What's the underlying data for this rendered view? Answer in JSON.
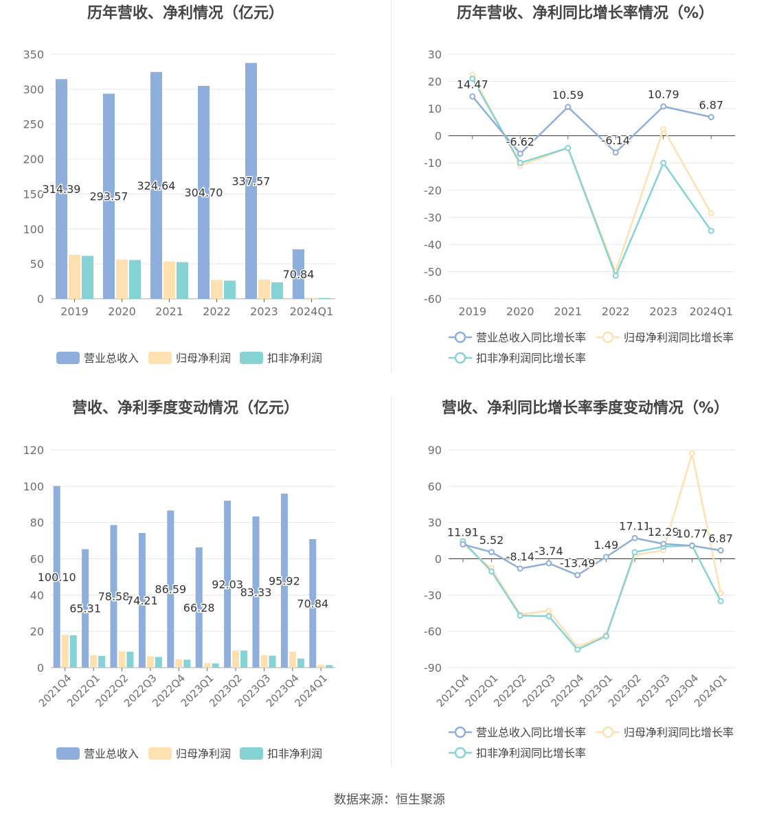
{
  "source_label": "数据来源：恒生聚源",
  "colors": {
    "revenue": "#8eaedb",
    "netprofit": "#ffe0b0",
    "deducted": "#86d3d6",
    "grid": "#e6e6ee",
    "axis_text": "#6e6e6e",
    "title": "#444444"
  },
  "legend_bar": [
    "营业总收入",
    "归母净利润",
    "扣非净利润"
  ],
  "legend_line": [
    "营业总收入同比增长率",
    "归母净利润同比增长率",
    "扣非净利润同比增长率"
  ],
  "chart_data": [
    {
      "type": "bar",
      "title": "历年营收、净利情况（亿元）",
      "categories": [
        "2019",
        "2020",
        "2021",
        "2022",
        "2023",
        "2024Q1"
      ],
      "ylim": [
        0,
        350
      ],
      "yticks": [
        0,
        50,
        100,
        150,
        200,
        250,
        300,
        350
      ],
      "series": [
        {
          "name": "营业总收入",
          "values": [
            314.39,
            293.57,
            324.64,
            304.7,
            337.57,
            70.84
          ]
        },
        {
          "name": "归母净利润",
          "values": [
            63.0,
            56.0,
            53.5,
            27.0,
            27.5,
            1.5
          ]
        },
        {
          "name": "扣非净利润",
          "values": [
            61.5,
            55.5,
            52.5,
            26.0,
            23.5,
            1.3
          ]
        }
      ],
      "labels": [
        "314.39",
        "293.57",
        "324.64",
        "304.70",
        "337.57",
        "70.84"
      ],
      "legend": "bottom"
    },
    {
      "type": "line",
      "title": "历年营收、净利同比增长率情况（%）",
      "categories": [
        "2019",
        "2020",
        "2021",
        "2022",
        "2023",
        "2024Q1"
      ],
      "ylim": [
        -60,
        30
      ],
      "yticks": [
        -60,
        -50,
        -40,
        -30,
        -20,
        -10,
        0,
        10,
        20,
        30
      ],
      "series": [
        {
          "name": "营业总收入同比增长率",
          "values": [
            14.47,
            -6.62,
            10.59,
            -6.14,
            10.79,
            6.87
          ]
        },
        {
          "name": "归母净利润同比增长率",
          "values": [
            22.5,
            -11.0,
            -4.5,
            -50.0,
            2.5,
            -28.5
          ]
        },
        {
          "name": "扣非净利润同比增长率",
          "values": [
            21.0,
            -10.0,
            -4.5,
            -51.5,
            -10.0,
            -35.0
          ]
        }
      ],
      "labels": [
        "14.47",
        "-6.62",
        "10.59",
        "-6.14",
        "10.79",
        "6.87"
      ],
      "legend": "bottom"
    },
    {
      "type": "bar",
      "title": "营收、净利季度变动情况（亿元）",
      "categories": [
        "2021Q4",
        "2022Q1",
        "2022Q2",
        "2022Q3",
        "2022Q4",
        "2023Q1",
        "2023Q2",
        "2023Q3",
        "2023Q4",
        "2024Q1"
      ],
      "ylim": [
        0,
        120
      ],
      "yticks": [
        0,
        20,
        40,
        60,
        80,
        100,
        120
      ],
      "series": [
        {
          "name": "营业总收入",
          "values": [
            100.1,
            65.31,
            78.58,
            74.21,
            86.59,
            66.28,
            92.03,
            83.33,
            95.92,
            70.84
          ]
        },
        {
          "name": "归母净利润",
          "values": [
            18.0,
            6.8,
            9.0,
            6.3,
            4.7,
            2.4,
            9.5,
            6.8,
            8.8,
            1.6
          ]
        },
        {
          "name": "扣非净利润",
          "values": [
            17.8,
            6.5,
            8.8,
            5.9,
            4.4,
            2.3,
            9.4,
            6.6,
            5.0,
            1.4
          ]
        }
      ],
      "labels": [
        "100.10",
        "65.31",
        "78.58",
        "74.21",
        "86.59",
        "66.28",
        "92.03",
        "83.33",
        "95.92",
        "70.84"
      ],
      "legend": "bottom"
    },
    {
      "type": "line",
      "title": "营收、净利同比增长率季度变动情况（%）",
      "categories": [
        "2021Q4",
        "2022Q1",
        "2022Q2",
        "2022Q3",
        "2022Q4",
        "2023Q1",
        "2023Q2",
        "2023Q3",
        "2023Q4",
        "2024Q1"
      ],
      "ylim": [
        -90,
        90
      ],
      "yticks": [
        -90,
        -60,
        -30,
        0,
        30,
        60,
        90
      ],
      "series": [
        {
          "name": "营业总收入同比增长率",
          "values": [
            11.91,
            5.52,
            -8.14,
            -3.74,
            -13.49,
            1.49,
            17.11,
            12.29,
            10.77,
            6.87
          ]
        },
        {
          "name": "归母净利润同比增长率",
          "values": [
            12.0,
            -8.0,
            -46.0,
            -43.0,
            -73.0,
            -63.0,
            3.0,
            7.0,
            87.0,
            -28.5
          ]
        },
        {
          "name": "扣非净利润同比增长率",
          "values": [
            14.5,
            -10.5,
            -47.0,
            -47.5,
            -75.0,
            -64.0,
            5.5,
            10.0,
            11.0,
            -35.0
          ]
        }
      ],
      "labels": [
        "11.91",
        "5.52",
        "-8.14",
        "-3.74",
        "-13.49",
        "1.49",
        "17.11",
        "12.29",
        "10.77",
        "6.87"
      ],
      "legend": "bottom"
    }
  ]
}
